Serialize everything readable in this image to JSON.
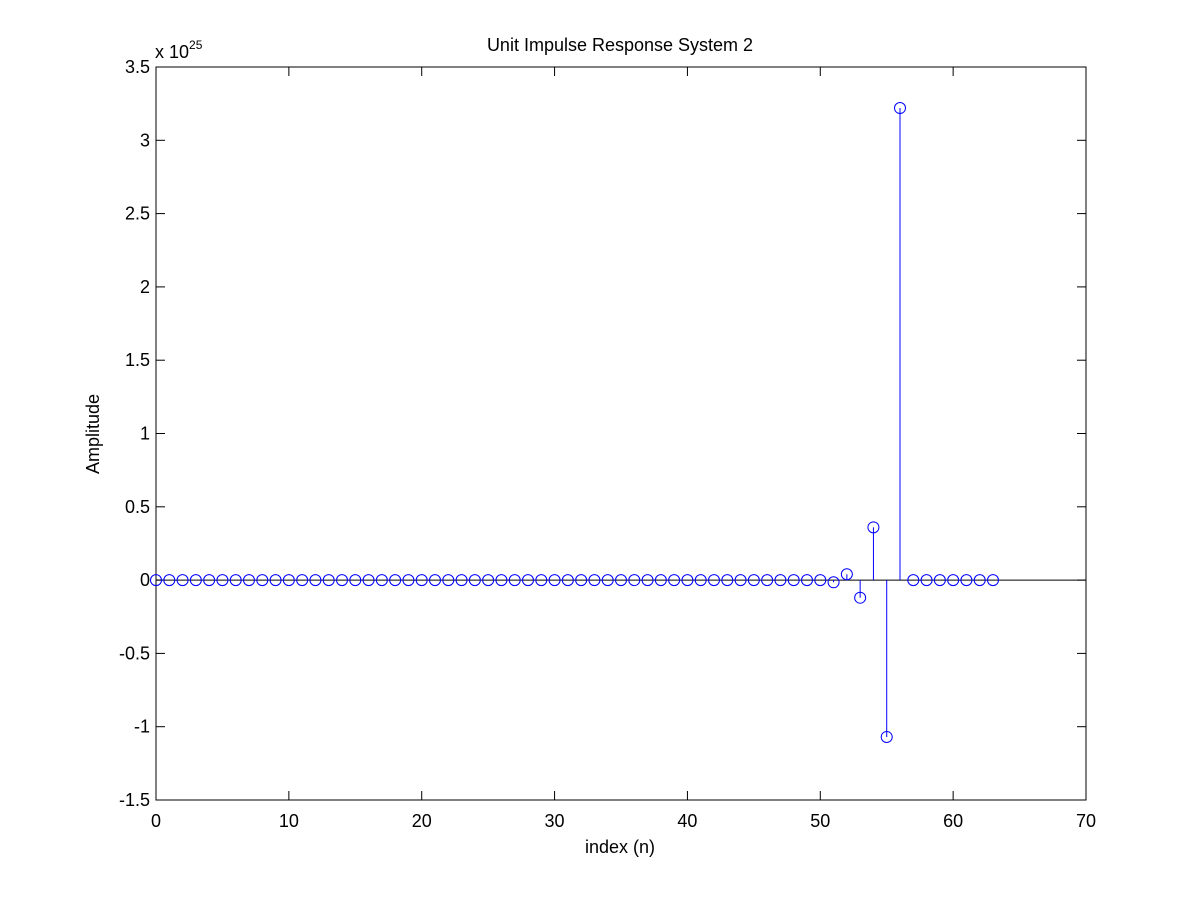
{
  "chart_data": {
    "type": "stem",
    "title": "Unit Impulse Response System 2",
    "xlabel": "index (n)",
    "ylabel": "Amplitude",
    "y_exponent_label": "x 10",
    "y_exponent_power": "25",
    "xlim": [
      0,
      70
    ],
    "ylim": [
      -1.5,
      3.5
    ],
    "x_ticks": [
      0,
      10,
      20,
      30,
      40,
      50,
      60,
      70
    ],
    "x_tick_labels": [
      "0",
      "10",
      "20",
      "30",
      "40",
      "50",
      "60",
      "70"
    ],
    "y_ticks": [
      -1.5,
      -1,
      -0.5,
      0,
      0.5,
      1,
      1.5,
      2,
      2.5,
      3,
      3.5
    ],
    "y_tick_labels": [
      "-1.5",
      "-1",
      "-0.5",
      "0",
      "0.5",
      "1",
      "1.5",
      "2",
      "2.5",
      "3",
      "3.5"
    ],
    "grid": false,
    "series": [
      {
        "color": "#0000ff",
        "marker": "circle",
        "x": [
          0,
          1,
          2,
          3,
          4,
          5,
          6,
          7,
          8,
          9,
          10,
          11,
          12,
          13,
          14,
          15,
          16,
          17,
          18,
          19,
          20,
          21,
          22,
          23,
          24,
          25,
          26,
          27,
          28,
          29,
          30,
          31,
          32,
          33,
          34,
          35,
          36,
          37,
          38,
          39,
          40,
          41,
          42,
          43,
          44,
          45,
          46,
          47,
          48,
          49,
          50,
          51,
          52,
          53,
          54,
          55,
          56,
          57,
          58,
          59,
          60,
          61,
          62,
          63
        ],
        "values": [
          0,
          0,
          0,
          0,
          0,
          0,
          0,
          0,
          0,
          0,
          0,
          0,
          0,
          0,
          0,
          0,
          0,
          0,
          0,
          0,
          0,
          0,
          0,
          0,
          0,
          0,
          0,
          0,
          0,
          0,
          0,
          0,
          0,
          0,
          0,
          0,
          0,
          0,
          0,
          0,
          0,
          0,
          0,
          0,
          0,
          0,
          0,
          0,
          0,
          0,
          0,
          -0.015,
          0.04,
          -0.12,
          0.36,
          -1.07,
          3.22,
          0,
          0,
          0,
          0,
          0,
          0,
          0
        ]
      }
    ]
  }
}
